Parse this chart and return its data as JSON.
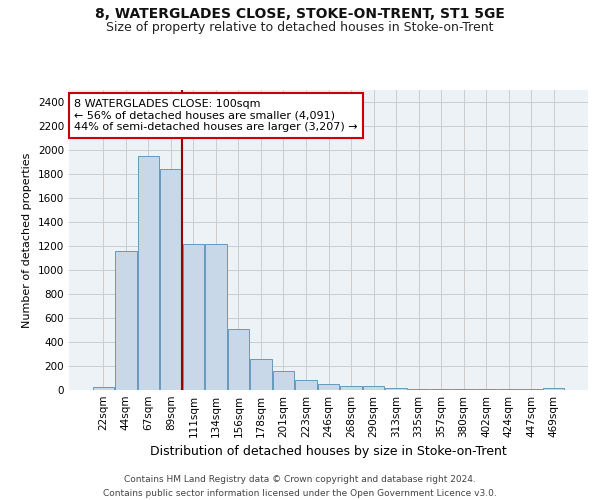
{
  "title": "8, WATERGLADES CLOSE, STOKE-ON-TRENT, ST1 5GE",
  "subtitle": "Size of property relative to detached houses in Stoke-on-Trent",
  "xlabel": "Distribution of detached houses by size in Stoke-on-Trent",
  "ylabel": "Number of detached properties",
  "categories": [
    "22sqm",
    "44sqm",
    "67sqm",
    "89sqm",
    "111sqm",
    "134sqm",
    "156sqm",
    "178sqm",
    "201sqm",
    "223sqm",
    "246sqm",
    "268sqm",
    "290sqm",
    "313sqm",
    "335sqm",
    "357sqm",
    "380sqm",
    "402sqm",
    "424sqm",
    "447sqm",
    "469sqm"
  ],
  "values": [
    25,
    1155,
    1950,
    1840,
    1220,
    1220,
    510,
    260,
    155,
    80,
    50,
    35,
    35,
    15,
    10,
    10,
    5,
    5,
    5,
    5,
    15
  ],
  "bar_color": "#c8d8e8",
  "bar_edge_color": "#6699bb",
  "marker_color": "#990000",
  "annotation_text": "8 WATERGLADES CLOSE: 100sqm\n← 56% of detached houses are smaller (4,091)\n44% of semi-detached houses are larger (3,207) →",
  "annotation_box_color": "#ffffff",
  "annotation_box_edge_color": "#cc0000",
  "ylim": [
    0,
    2500
  ],
  "yticks": [
    0,
    200,
    400,
    600,
    800,
    1000,
    1200,
    1400,
    1600,
    1800,
    2000,
    2200,
    2400
  ],
  "grid_color": "#cccccc",
  "background_color": "#edf2f7",
  "footer_line1": "Contains HM Land Registry data © Crown copyright and database right 2024.",
  "footer_line2": "Contains public sector information licensed under the Open Government Licence v3.0.",
  "title_fontsize": 10,
  "subtitle_fontsize": 9,
  "xlabel_fontsize": 9,
  "ylabel_fontsize": 8,
  "tick_fontsize": 7.5,
  "annotation_fontsize": 8,
  "footer_fontsize": 6.5
}
